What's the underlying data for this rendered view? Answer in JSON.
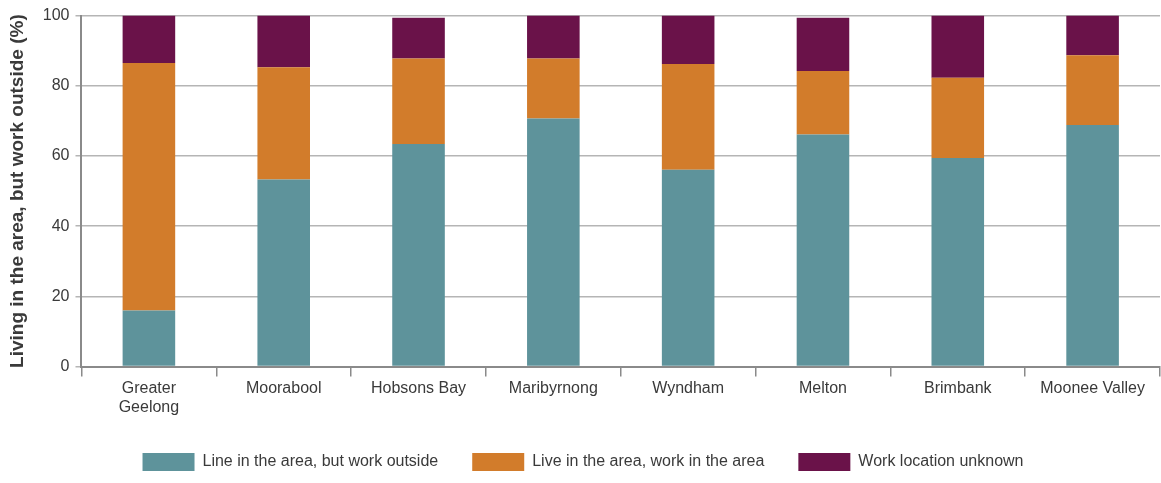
{
  "chart_data": {
    "type": "bar",
    "stacked": true,
    "ylabel": "Living in the area, but work outside (%)",
    "categories": [
      "Greater Geelong",
      "Moorabool",
      "Hobsons Bay",
      "Maribyrnong",
      "Wyndham",
      "Melton",
      "Brimbank",
      "Moonee Valley"
    ],
    "series": [
      {
        "name": "Line in the area, but work outside",
        "color": "#5e939b",
        "values": [
          16,
          53.3,
          63.4,
          70.7,
          56.1,
          66.1,
          59.4,
          68.8
        ]
      },
      {
        "name": "Live in the area, work in the area",
        "color": "#d27c2b",
        "values": [
          70.5,
          32,
          24.4,
          17.1,
          30.1,
          18.1,
          22.9,
          19.9
        ]
      },
      {
        "name": "Work location unknown",
        "color": "#6a1249",
        "values": [
          13.5,
          14.7,
          11.6,
          12.2,
          13.8,
          15.2,
          17.7,
          11.3
        ]
      }
    ],
    "ylim": [
      0,
      100
    ],
    "yticks": [
      0,
      20,
      40,
      60,
      80,
      100
    ],
    "grid": "y",
    "legend": "bottom"
  }
}
